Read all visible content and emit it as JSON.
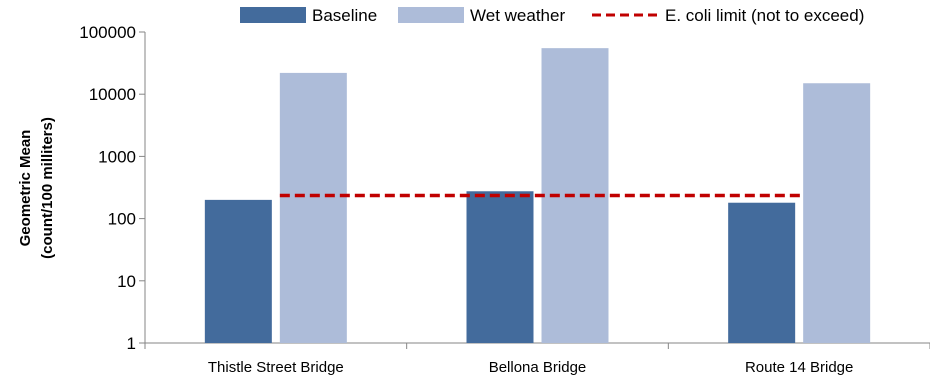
{
  "chart_data": {
    "type": "bar",
    "title": "",
    "xlabel": "",
    "ylabel": [
      "Geometric Mean",
      "(count/100 milliters)"
    ],
    "y_scale": "log",
    "ylim": [
      1,
      100000
    ],
    "y_ticks": [
      1,
      10,
      100,
      1000,
      10000,
      100000
    ],
    "grid": false,
    "legend_position": "top",
    "categories": [
      "Thistle Street Bridge",
      "Bellona Bridge",
      "Route 14 Bridge"
    ],
    "series": [
      {
        "name": "Baseline",
        "color": "#436B9C",
        "values": [
          200,
          275,
          180
        ]
      },
      {
        "name": "Wet weather",
        "color": "#ADBCD9",
        "values": [
          22000,
          55000,
          15000
        ]
      }
    ],
    "reference_line": {
      "name": "E. coli limit (not to exceed)",
      "value": 235,
      "color": "#C00000",
      "style": "dashed"
    }
  }
}
